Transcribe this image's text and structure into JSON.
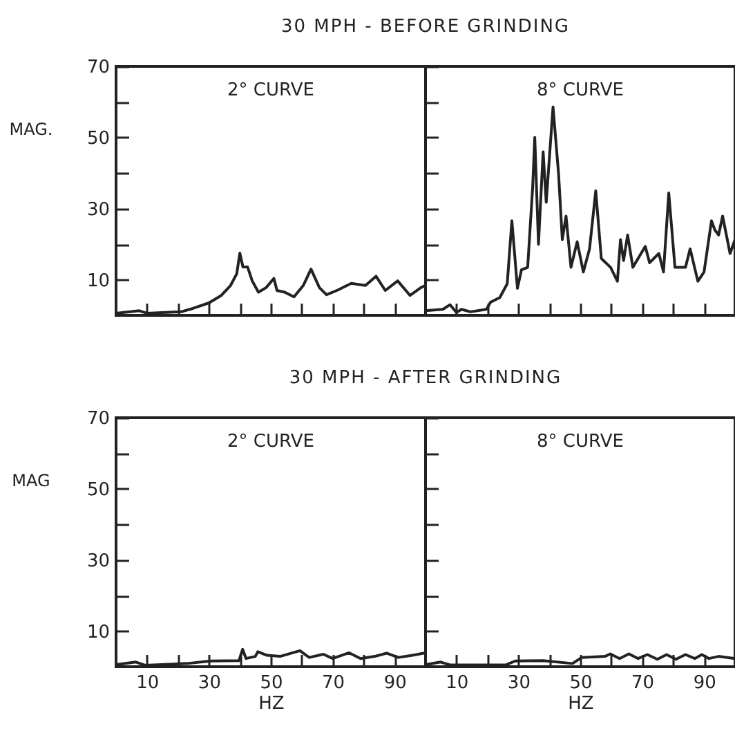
{
  "chart_data": [
    {
      "type": "line",
      "title": "30 MPH - BEFORE GRINDING",
      "ylabel": "MAG.",
      "annotations": [
        "2° CURVE"
      ],
      "xlim": [
        0,
        100
      ],
      "ylim": [
        0,
        70
      ],
      "xticks": [
        10,
        {
          "value": 20,
          "label": null
        },
        30,
        {
          "value": 40,
          "label": null
        },
        50,
        {
          "value": 60,
          "label": null
        },
        70,
        {
          "value": 80,
          "label": null
        },
        90
      ],
      "yticks": [
        10,
        {
          "value": 20,
          "label": null
        },
        30,
        {
          "value": 40,
          "label": null
        },
        50,
        {
          "value": 60,
          "label": null
        },
        70
      ],
      "tick_labels": "y",
      "grid": false,
      "series": [
        {
          "color": "#222222",
          "x": [
            0,
            7.5,
            10,
            21,
            25,
            30,
            34,
            37,
            39,
            40,
            41,
            42.5,
            44,
            46,
            48.5,
            51,
            52,
            54.5,
            57.5,
            60.5,
            63,
            65.7,
            68,
            71.6,
            76,
            80.6,
            84,
            87,
            91,
            95,
            98.5,
            100
          ],
          "values": [
            0.6,
            1.3,
            0.6,
            1,
            2,
            3.5,
            5.6,
            8.4,
            11.7,
            17.5,
            13.6,
            13.6,
            9.7,
            6.5,
            7.8,
            10.4,
            7,
            6.5,
            5.2,
            8.4,
            13,
            7.8,
            5.8,
            7.1,
            9,
            8.4,
            11,
            7,
            9.7,
            5.6,
            7.8,
            8.4
          ]
        }
      ]
    },
    {
      "type": "line",
      "annotations": [
        "8° CURVE"
      ],
      "xlim": [
        0,
        100
      ],
      "ylim": [
        0,
        70
      ],
      "xticks": [
        {
          "value": 10,
          "label": null
        },
        {
          "value": 20,
          "label": null
        },
        {
          "value": 30,
          "label": null
        },
        {
          "value": 40,
          "label": null
        },
        {
          "value": 50,
          "label": null
        },
        {
          "value": 60,
          "label": null
        },
        {
          "value": 70,
          "label": null
        },
        {
          "value": 80,
          "label": null
        },
        {
          "value": 90,
          "label": null
        }
      ],
      "yticks": [
        {
          "value": 10,
          "label": null
        },
        {
          "value": 20,
          "label": null
        },
        {
          "value": 30,
          "label": null
        },
        {
          "value": 40,
          "label": null
        },
        {
          "value": 50,
          "label": null
        },
        {
          "value": 60,
          "label": null
        },
        {
          "value": 70,
          "label": null
        }
      ],
      "tick_labels": false,
      "grid": false,
      "series": [
        {
          "color": "#222222",
          "x": [
            0,
            5.6,
            7.9,
            10,
            11.6,
            14.5,
            19.7,
            21,
            24,
            26.4,
            27.9,
            29.7,
            31,
            33,
            34.6,
            35.3,
            36.5,
            38,
            39,
            41.2,
            43,
            44.2,
            45.4,
            47,
            49,
            51,
            53,
            55,
            56.8,
            59.8,
            62,
            63,
            64,
            65.3,
            67,
            71,
            72.4,
            75.4,
            76.9,
            78.6,
            80.6,
            84,
            85.5,
            88,
            90,
            92.4,
            93.5,
            94.7,
            96,
            98.4,
            100
          ],
          "values": [
            1.3,
            1.7,
            3,
            0.8,
            1.7,
            1,
            1.7,
            3.7,
            5,
            8.9,
            26.6,
            7.6,
            12.8,
            13.5,
            35.7,
            50,
            20,
            46,
            31.8,
            58.6,
            39.7,
            21.3,
            27.9,
            13.5,
            20.7,
            12.2,
            18.7,
            35,
            16,
            13.5,
            9.6,
            21.3,
            15.4,
            22.6,
            13.5,
            19.4,
            14.8,
            17.4,
            12.2,
            34.4,
            13.5,
            13.5,
            18.7,
            9.6,
            12.2,
            26.6,
            24,
            22.6,
            27.9,
            17.4,
            21.3
          ]
        }
      ]
    },
    {
      "type": "line",
      "title": "30 MPH - AFTER GRINDING",
      "xlabel": "HZ",
      "ylabel": "MAG",
      "annotations": [
        "2° CURVE"
      ],
      "xlim": [
        0,
        100
      ],
      "ylim": [
        0,
        70
      ],
      "xticks": [
        10,
        {
          "value": 20,
          "label": null
        },
        30,
        {
          "value": 40,
          "label": null
        },
        50,
        {
          "value": 60,
          "label": null
        },
        70,
        {
          "value": 80,
          "label": null
        },
        90
      ],
      "yticks": [
        10,
        {
          "value": 20,
          "label": null
        },
        30,
        {
          "value": 40,
          "label": null
        },
        50,
        {
          "value": 60,
          "label": null
        },
        70
      ],
      "grid": false,
      "series": [
        {
          "color": "#222222",
          "x": [
            0,
            6.4,
            9.4,
            23,
            30.6,
            39.7,
            40.9,
            42,
            45,
            45.8,
            48.8,
            53,
            59.4,
            62.4,
            67,
            70,
            75.3,
            79,
            83.6,
            87.4,
            91.2,
            95.8,
            100
          ],
          "values": [
            0.6,
            1.3,
            0.4,
            0.9,
            1.6,
            1.7,
            4.9,
            2.3,
            2.9,
            4.2,
            3.2,
            2.9,
            4.5,
            2.6,
            3.5,
            2.3,
            3.9,
            2.3,
            2.9,
            3.8,
            2.6,
            3.2,
            3.9
          ]
        }
      ]
    },
    {
      "type": "line",
      "xlabel": "HZ",
      "annotations": [
        "8° CURVE"
      ],
      "xlim": [
        0,
        100
      ],
      "ylim": [
        0,
        70
      ],
      "xticks": [
        10,
        {
          "value": 20,
          "label": null
        },
        30,
        {
          "value": 40,
          "label": null
        },
        50,
        {
          "value": 60,
          "label": null
        },
        70,
        {
          "value": 80,
          "label": null
        },
        90
      ],
      "yticks": [
        {
          "value": 10,
          "label": null
        },
        {
          "value": 20,
          "label": null
        },
        {
          "value": 30,
          "label": null
        },
        {
          "value": 40,
          "label": null
        },
        {
          "value": 50,
          "label": null
        },
        {
          "value": 60,
          "label": null
        },
        {
          "value": 70,
          "label": null
        }
      ],
      "tick_labels": "x",
      "grid": false,
      "series": [
        {
          "color": "#222222",
          "x": [
            0,
            4.9,
            7.9,
            26,
            29,
            38,
            47.5,
            50.5,
            58,
            59.7,
            62.7,
            65.7,
            68.7,
            71.7,
            74.9,
            77.9,
            80.9,
            84,
            87,
            89.3,
            91.6,
            94.7,
            100
          ],
          "values": [
            0.6,
            1.3,
            0.5,
            0.5,
            1.6,
            1.7,
            0.9,
            2.6,
            2.9,
            3.6,
            2.3,
            3.6,
            2.3,
            3.4,
            2.1,
            3.4,
            2.1,
            3.4,
            2.3,
            3.4,
            2.3,
            2.9,
            2.3
          ]
        }
      ]
    }
  ]
}
